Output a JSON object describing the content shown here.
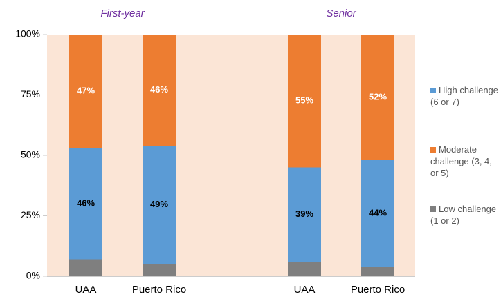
{
  "chart_data": {
    "type": "stacked_bar",
    "groups": [
      "First-year",
      "Senior"
    ],
    "categories": [
      "UAA",
      "Puerto Rico",
      "UAA",
      "Puerto Rico"
    ],
    "series": [
      {
        "name": "Low challenge (1 or 2)",
        "color": "#7f7f7f",
        "values": [
          7,
          5,
          6,
          4
        ]
      },
      {
        "name": "High challenge (6 or 7)",
        "color": "#5b9bd5",
        "values": [
          46,
          49,
          39,
          44
        ],
        "value_labels": [
          "46%",
          "49%",
          "39%",
          "44%"
        ]
      },
      {
        "name": "Moderate challenge (3, 4, or 5)",
        "color": "#ed7d31",
        "values": [
          47,
          46,
          55,
          52
        ],
        "value_labels": [
          "47%",
          "46%",
          "55%",
          "52%"
        ]
      }
    ],
    "legend_order": [
      1,
      2,
      0
    ],
    "ylim": [
      0,
      100
    ],
    "yticks": [
      {
        "value": 0,
        "label": "0%"
      },
      {
        "value": 25,
        "label": "25%"
      },
      {
        "value": 50,
        "label": "50%"
      },
      {
        "value": 75,
        "label": "75%"
      },
      {
        "value": 100,
        "label": "100%"
      }
    ]
  }
}
